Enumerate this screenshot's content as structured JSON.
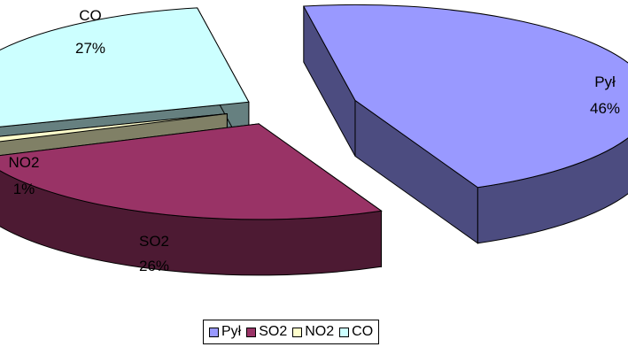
{
  "chart_data": {
    "type": "pie",
    "style": "3d-exploded",
    "categories": [
      "Pył",
      "SO2",
      "NO2",
      "CO"
    ],
    "values": [
      46,
      26,
      1,
      27
    ],
    "percent_labels": [
      "46%",
      "26%",
      "1%",
      "27%"
    ],
    "colors": {
      "top": [
        "#9999FF",
        "#993366",
        "#FFFFCC",
        "#CCFFFF"
      ],
      "side": [
        "#4C4C80",
        "#4D1A33",
        "#808066",
        "#668080"
      ]
    },
    "legend": {
      "position": "bottom",
      "entries": [
        "Pył",
        "SO2",
        "NO2",
        "CO"
      ]
    },
    "title": ""
  }
}
